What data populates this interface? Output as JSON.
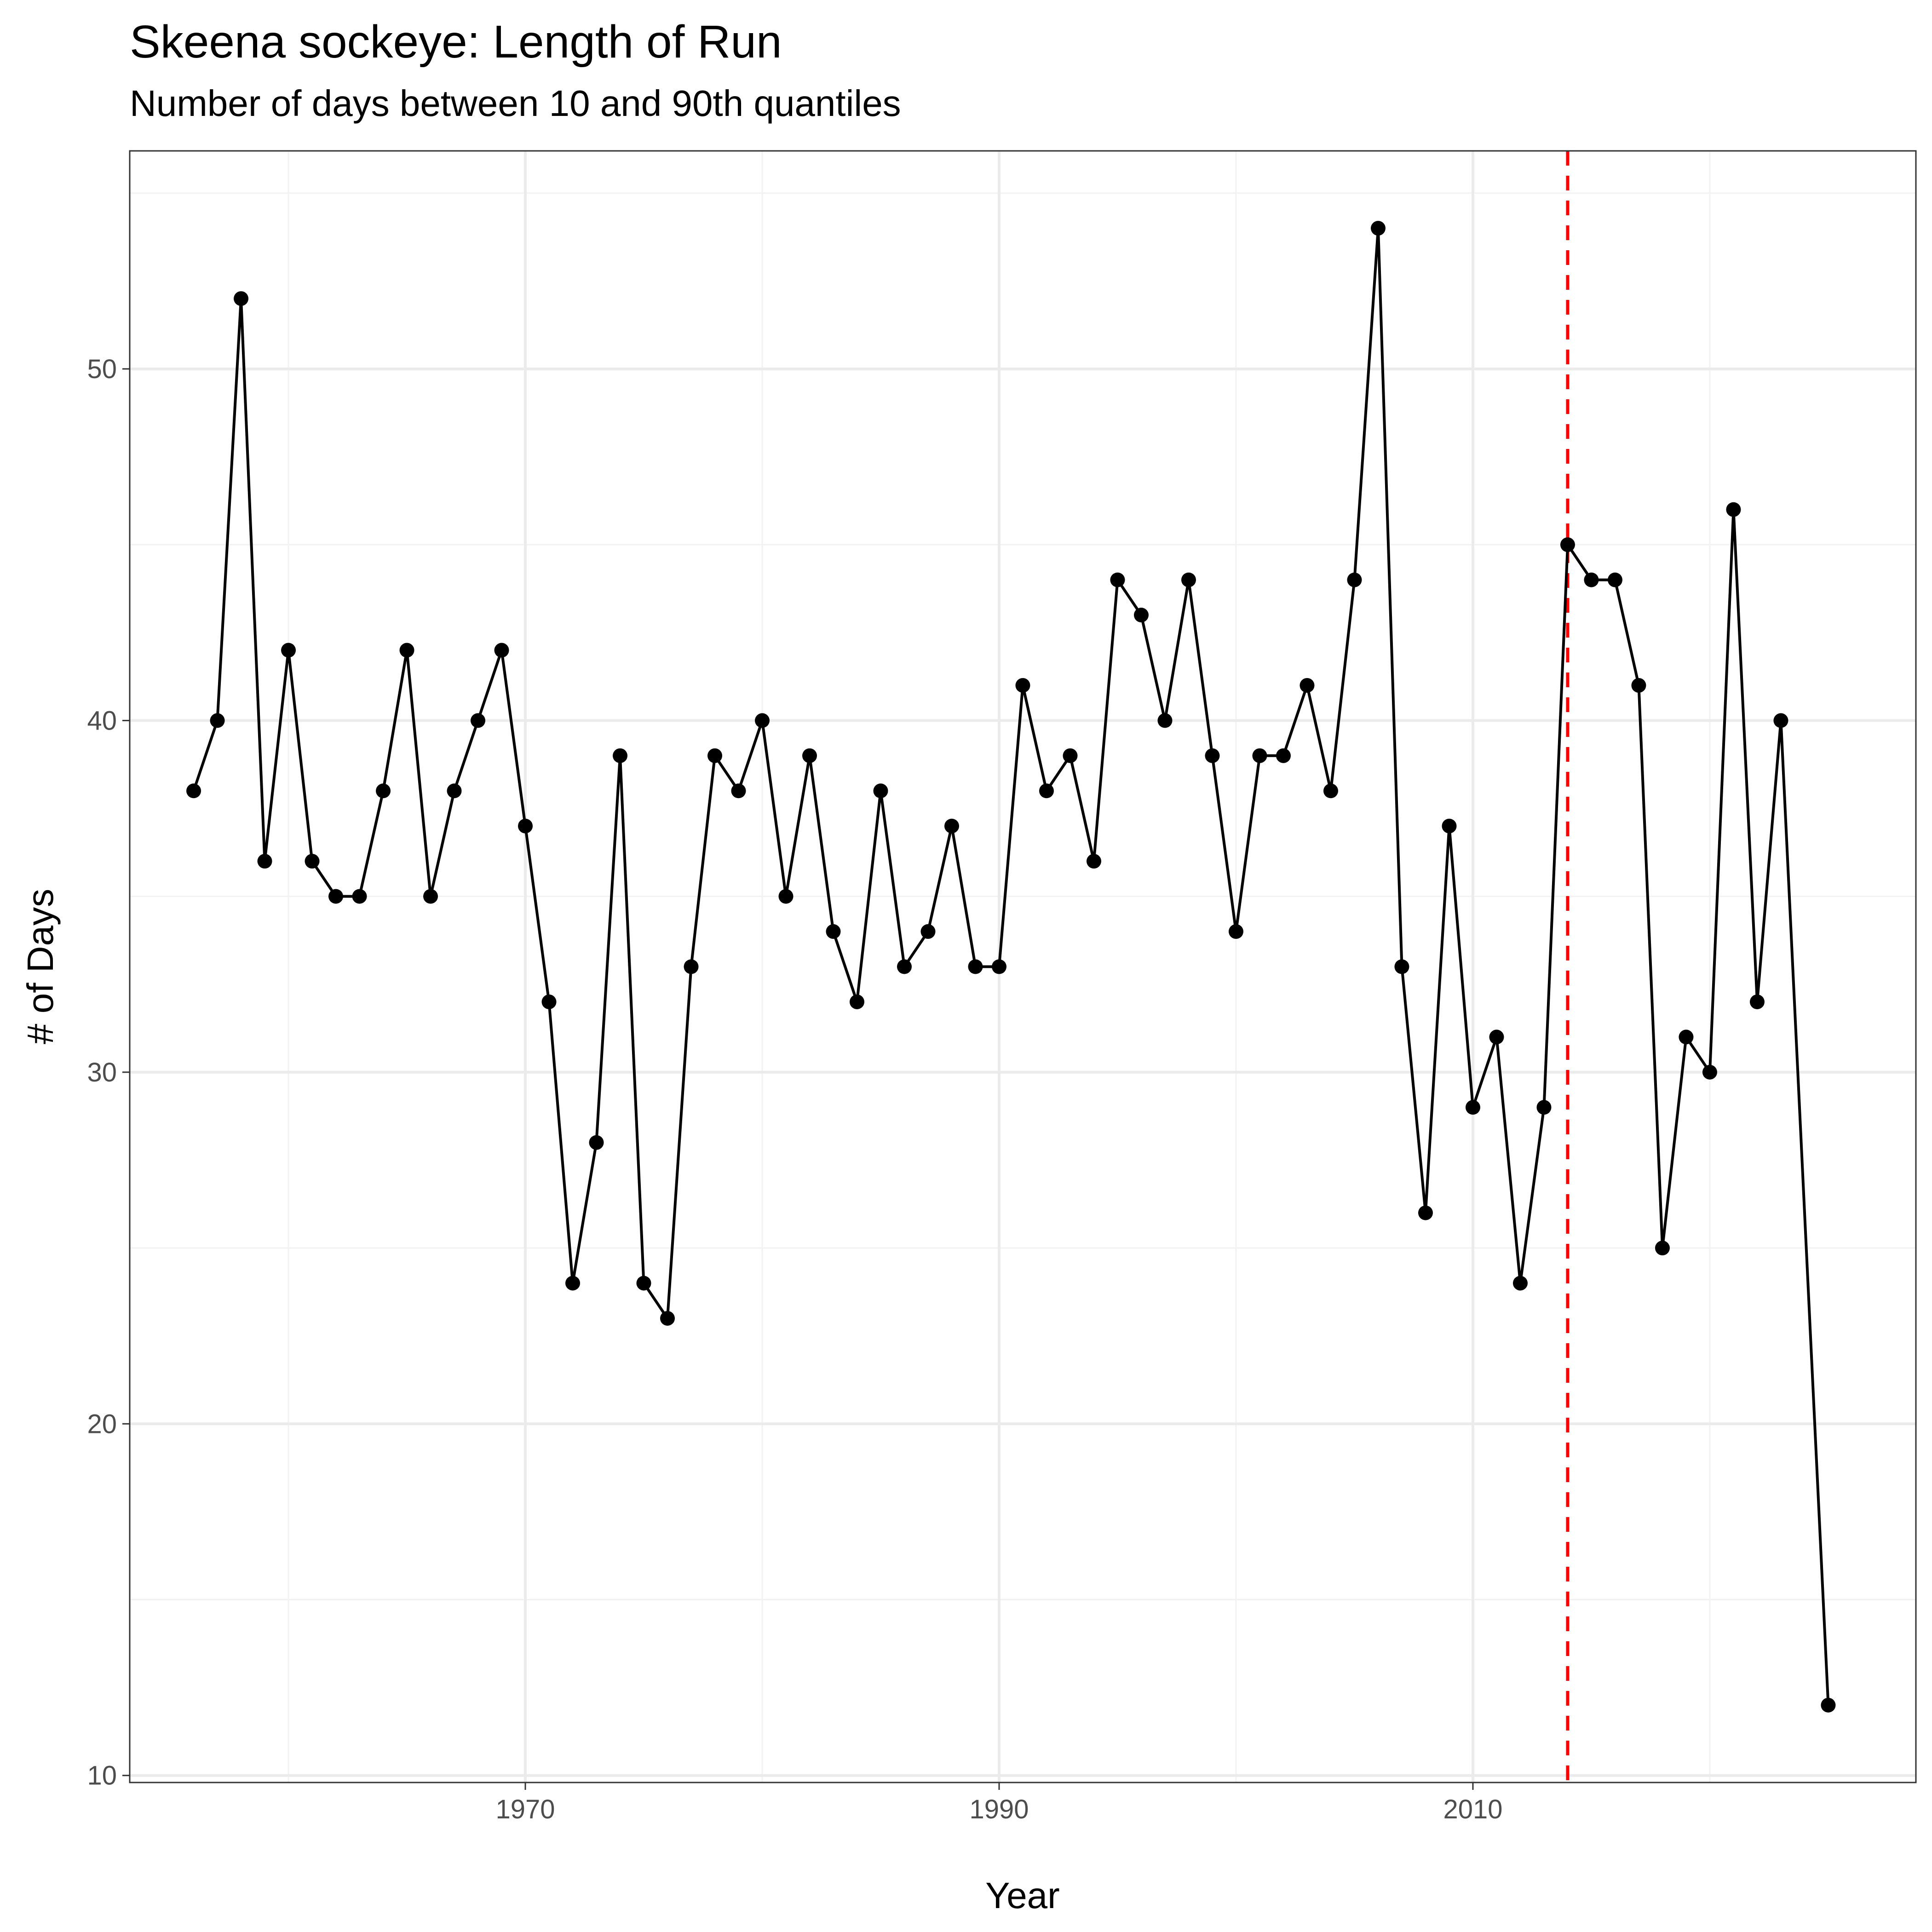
{
  "chart_data": {
    "type": "line",
    "title": "Skeena sockeye: Length of Run",
    "subtitle": "Number of days between 10 and 90th quantiles",
    "xlabel": "Year",
    "ylabel": "# of Days",
    "xlim": [
      1953.3,
      2028.7
    ],
    "ylim": [
      9.8,
      56.2
    ],
    "xticks": [
      1970,
      1990,
      2010
    ],
    "xtick_labels": [
      "1970",
      "1990",
      "2010"
    ],
    "yticks": [
      10,
      20,
      30,
      40,
      50
    ],
    "ytick_labels": [
      "10",
      "20",
      "30",
      "40",
      "50"
    ],
    "grid": true,
    "reference_line": {
      "x": 2014,
      "color": "#ff0000",
      "style": "dashed"
    },
    "series": [
      {
        "x": [
          1956,
          1957,
          1958,
          1959,
          1960,
          1961,
          1962,
          1963,
          1964,
          1965,
          1966,
          1967,
          1968,
          1969,
          1970,
          1971,
          1972,
          1973,
          1974,
          1975,
          1976,
          1977,
          1978,
          1979,
          1980,
          1981,
          1982,
          1983,
          1984,
          1985,
          1986,
          1987,
          1988,
          1989,
          1990,
          1991,
          1992,
          1993,
          1994,
          1995,
          1996,
          1997,
          1998,
          1999,
          2000,
          2001,
          2002,
          2003,
          2004,
          2005,
          2006,
          2007,
          2008,
          2009,
          2010,
          2011,
          2012,
          2013,
          2014,
          2015,
          2016,
          2017,
          2018,
          2019,
          2020,
          2021,
          2022,
          2023,
          2025
        ],
        "values": [
          38,
          40,
          52,
          36,
          42,
          36,
          35,
          35,
          38,
          42,
          35,
          38,
          40,
          42,
          37,
          32,
          24,
          28,
          39,
          24,
          23,
          33,
          39,
          38,
          40,
          35,
          39,
          34,
          32,
          38,
          33,
          34,
          37,
          33,
          33,
          41,
          38,
          39,
          36,
          44,
          43,
          40,
          44,
          39,
          34,
          39,
          39,
          41,
          38,
          44,
          54,
          33,
          26,
          37,
          29,
          31,
          24,
          29,
          45,
          44,
          44,
          41,
          25,
          31,
          30,
          46,
          32,
          40,
          12
        ]
      }
    ]
  }
}
